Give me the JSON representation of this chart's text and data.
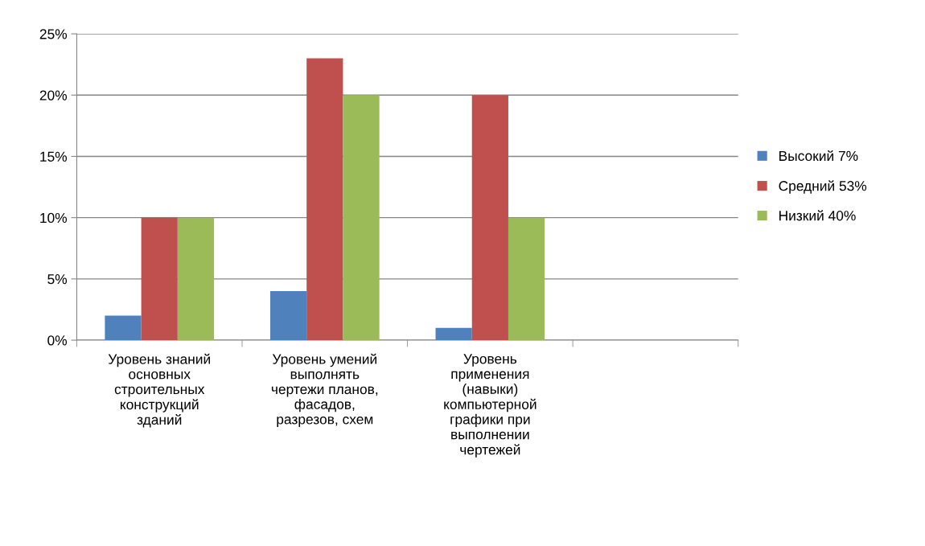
{
  "chart_data": {
    "type": "bar",
    "categories": [
      "Уровень знаний\nосновных\nстроительных\nконструкций\nзданий",
      "Уровень умений\nвыполнять\nчертежи планов,\nфасадов,\nразрезов, схем",
      "Уровень\nприменения\n(навыки)\nкомпьютерной\nграфики при\nвыполнении\nчертежей",
      null
    ],
    "series": [
      {
        "name": "Высокий 7%",
        "color": "#4f81bd",
        "values": [
          2,
          4,
          1,
          null
        ]
      },
      {
        "name": "Средний 53%",
        "color": "#c0504d",
        "values": [
          10,
          23,
          20,
          null
        ]
      },
      {
        "name": "Низкий 40%",
        "color": "#9bbb59",
        "values": [
          10,
          20,
          10,
          null
        ]
      }
    ],
    "ylim": [
      0,
      25
    ],
    "yticks": [
      {
        "value": 0,
        "label": "0%"
      },
      {
        "value": 5,
        "label": "5%"
      },
      {
        "value": 10,
        "label": "10%"
      },
      {
        "value": 15,
        "label": "15%"
      },
      {
        "value": 20,
        "label": "20%"
      },
      {
        "value": 25,
        "label": "25%"
      }
    ],
    "grid": "y",
    "legend": "right"
  }
}
